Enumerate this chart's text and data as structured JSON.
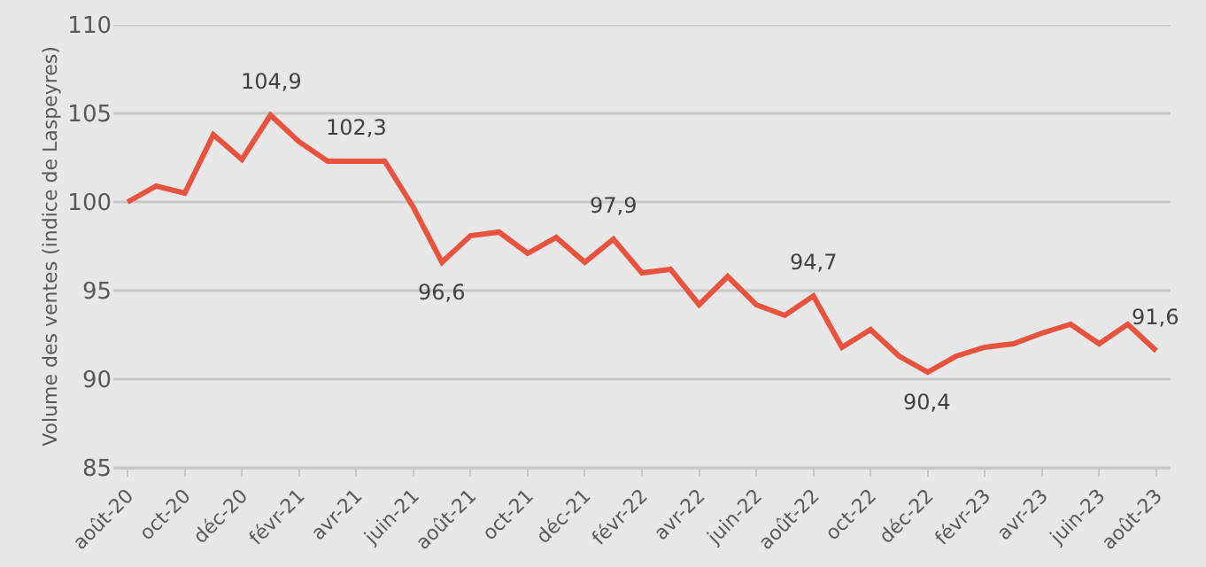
{
  "chart_data": {
    "type": "line",
    "ylabel": "Volume des ventes (indice de Laspeyres)",
    "categories": [
      "août-20",
      null,
      "oct-20",
      null,
      "déc-20",
      null,
      "févr-21",
      null,
      "avr-21",
      null,
      "juin-21",
      null,
      "août-21",
      null,
      "oct-21",
      null,
      "déc-21",
      null,
      "févr-22",
      null,
      "avr-22",
      null,
      "juin-22",
      null,
      "août-22",
      null,
      "oct-22",
      null,
      "déc-22",
      null,
      "févr-23",
      null,
      "avr-23",
      null,
      "juin-23",
      null,
      "août-23"
    ],
    "series": [
      {
        "color": "#e8533f",
        "values": [
          100,
          100.9,
          100.5,
          103.8,
          102.4,
          104.9,
          103.4,
          102.3,
          102.3,
          102.3,
          99.7,
          96.6,
          98.1,
          98.3,
          97.1,
          98.0,
          96.6,
          97.9,
          96.0,
          96.2,
          94.2,
          95.8,
          94.2,
          93.6,
          94.7,
          91.8,
          92.8,
          91.3,
          90.4,
          91.3,
          91.8,
          92.0,
          92.6,
          93.1,
          92.0,
          93.1,
          91.6
        ],
        "value_labels": [
          null,
          null,
          null,
          null,
          null,
          "104,9",
          null,
          null,
          "102,3",
          null,
          null,
          "96,6",
          null,
          null,
          null,
          null,
          null,
          "97,9",
          null,
          null,
          null,
          null,
          null,
          null,
          "94,7",
          null,
          null,
          null,
          "90,4",
          null,
          null,
          null,
          null,
          null,
          null,
          null,
          "91,6"
        ]
      }
    ],
    "ylim": [
      85,
      110
    ],
    "yticks": [
      85,
      90,
      95,
      100,
      105,
      110
    ],
    "grid": "y",
    "marker": "none",
    "line_style": "solid"
  }
}
